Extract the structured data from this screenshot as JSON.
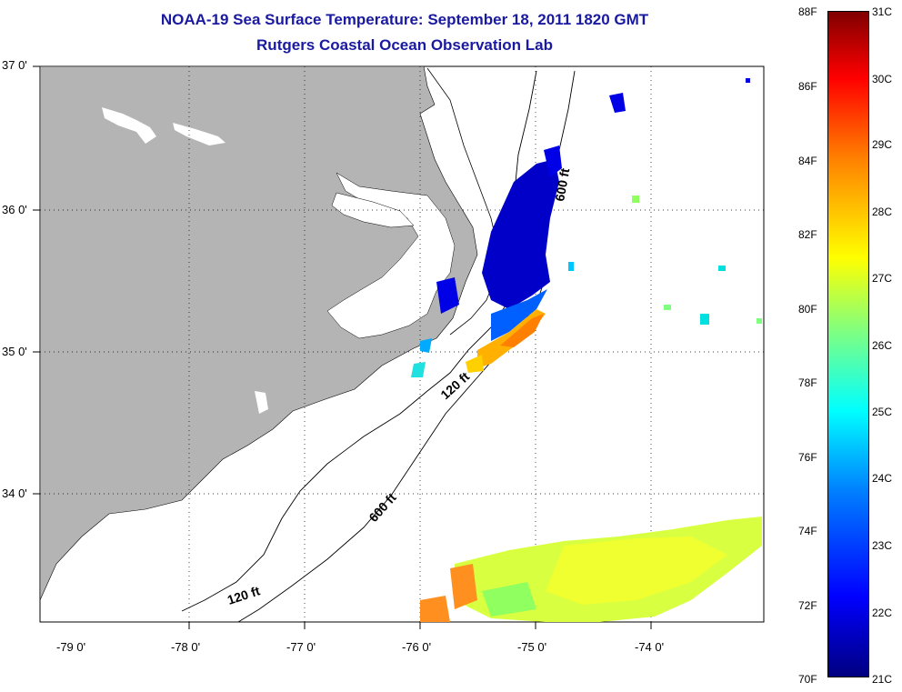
{
  "title": {
    "line1": "NOAA-19 Sea Surface Temperature:  September 18, 2011 1820 GMT",
    "line2": "Rutgers Coastal Ocean Observation Lab"
  },
  "axes": {
    "lat_labels": [
      "37 0'",
      "36 0'",
      "35 0'",
      "34 0'"
    ],
    "lon_labels": [
      "-79 0'",
      "-78 0'",
      "-77 0'",
      "-76 0'",
      "-75 0'",
      "-74 0'"
    ]
  },
  "contours": {
    "shelf_120": "120 ft",
    "shelf_600": "600 ft"
  },
  "colorbar": {
    "fahrenheit": [
      "88F",
      "86F",
      "84F",
      "82F",
      "80F",
      "78F",
      "76F",
      "74F",
      "72F",
      "70F"
    ],
    "celsius": [
      "31C",
      "30C",
      "29C",
      "28C",
      "27C",
      "26C",
      "25C",
      "24C",
      "23C",
      "22C",
      "21C"
    ]
  },
  "colors": {
    "title": "#1a1aa0",
    "land": "#b4b4b4",
    "cold": "#0000cc",
    "warm": "#ff8000"
  },
  "map_data": {
    "lon_range": [
      -79.3,
      -73.0
    ],
    "lat_range": [
      33.15,
      37.0
    ],
    "grid": "dotted"
  }
}
